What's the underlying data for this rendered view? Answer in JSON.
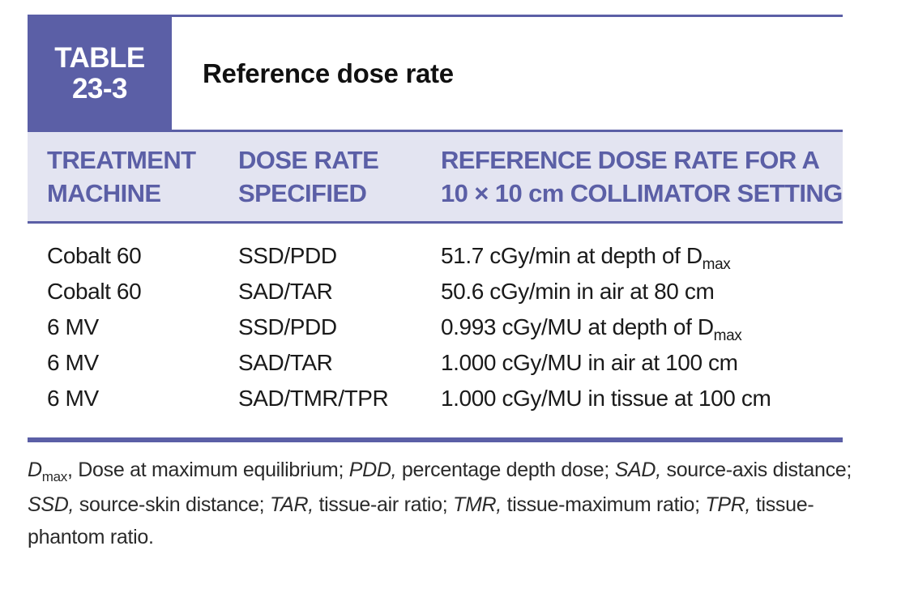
{
  "table": {
    "label_line1": "TABLE",
    "label_line2": "23-3",
    "title": "Reference dose rate",
    "headers": {
      "machine": "TREATMENT\nMACHINE",
      "dose_rate_specified": "DOSE RATE\nSPECIFIED",
      "reference": "REFERENCE DOSE RATE FOR A\n10 × 10 cm COLLIMATOR SETTING"
    },
    "rows": [
      {
        "machine": "Cobalt 60",
        "specified": "SSD/PDD",
        "reference": "51.7 cGy/min at depth of D",
        "reference_sub": "max"
      },
      {
        "machine": "Cobalt 60",
        "specified": "SAD/TAR",
        "reference": "50.6 cGy/min in air at 80 cm",
        "reference_sub": ""
      },
      {
        "machine": "6 MV",
        "specified": "SSD/PDD",
        "reference": "0.993 cGy/MU at depth of D",
        "reference_sub": "max"
      },
      {
        "machine": "6 MV",
        "specified": "SAD/TAR",
        "reference": "1.000 cGy/MU in air at 100 cm",
        "reference_sub": ""
      },
      {
        "machine": "6 MV",
        "specified": "SAD/TMR/TPR",
        "reference": "1.000 cGy/MU in tissue at 100 cm",
        "reference_sub": ""
      }
    ]
  },
  "footnote": {
    "d_term": "D",
    "d_sub": "max",
    "d_def": ", Dose at maximum equilibrium; ",
    "pdd_term": "PDD,",
    "pdd_def": " percentage depth dose; ",
    "sad_term": "SAD,",
    "sad_def": " source-axis distance; ",
    "ssd_term": "SSD,",
    "ssd_def": " source-skin distance; ",
    "tar_term": "TAR,",
    "tar_def": " tissue-air ratio; ",
    "tmr_term": "TMR,",
    "tmr_def": " tissue-maximum ratio; ",
    "tpr_term": "TPR,",
    "tpr_def": " tissue-phantom ratio."
  }
}
